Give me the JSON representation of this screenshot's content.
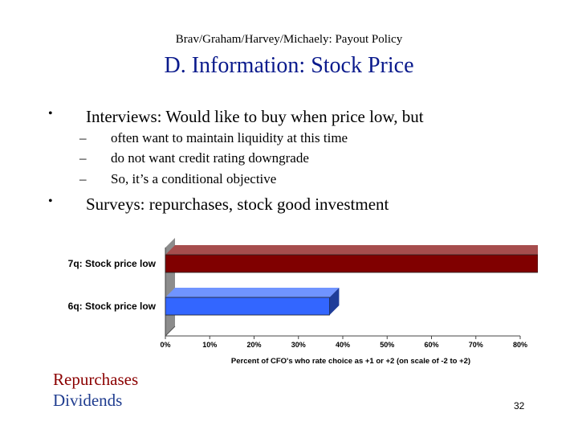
{
  "slide": {
    "header": "Brav/Graham/Harvey/Michaely: Payout Policy",
    "title": "D. Information: Stock Price",
    "bullets": [
      {
        "marker": "•",
        "text": "Interviews: Would like to buy when price low, but",
        "subitems": [
          {
            "marker": "–",
            "text": "often want to maintain liquidity at this time"
          },
          {
            "marker": "–",
            "text": "do not want credit rating downgrade"
          },
          {
            "marker": "–",
            "text": "So, it’s a conditional objective"
          }
        ]
      },
      {
        "marker": "•",
        "text": "Surveys: repurchases, stock good investment",
        "subitems": []
      }
    ],
    "legend": {
      "repurchases": {
        "label": "Repurchases",
        "color": "#8b0000"
      },
      "dividends": {
        "label": "Dividends",
        "color": "#1f3c8f"
      }
    },
    "page_number": "32"
  },
  "chart_data": {
    "type": "bar",
    "orientation": "horizontal",
    "categories": [
      "7q: Stock price low",
      "6q: Stock price low"
    ],
    "values": [
      0.84,
      0.37
    ],
    "colors": [
      "#800000",
      "#3366ff"
    ],
    "x_ticks": [
      "0%",
      "10%",
      "20%",
      "30%",
      "40%",
      "50%",
      "60%",
      "70%",
      "80%"
    ],
    "xlim": [
      0,
      0.8
    ],
    "xlabel": "Percent of CFO's who rate choice as +1 or +2 (on scale of -2 to +2)",
    "grid": false,
    "legend": "none"
  }
}
